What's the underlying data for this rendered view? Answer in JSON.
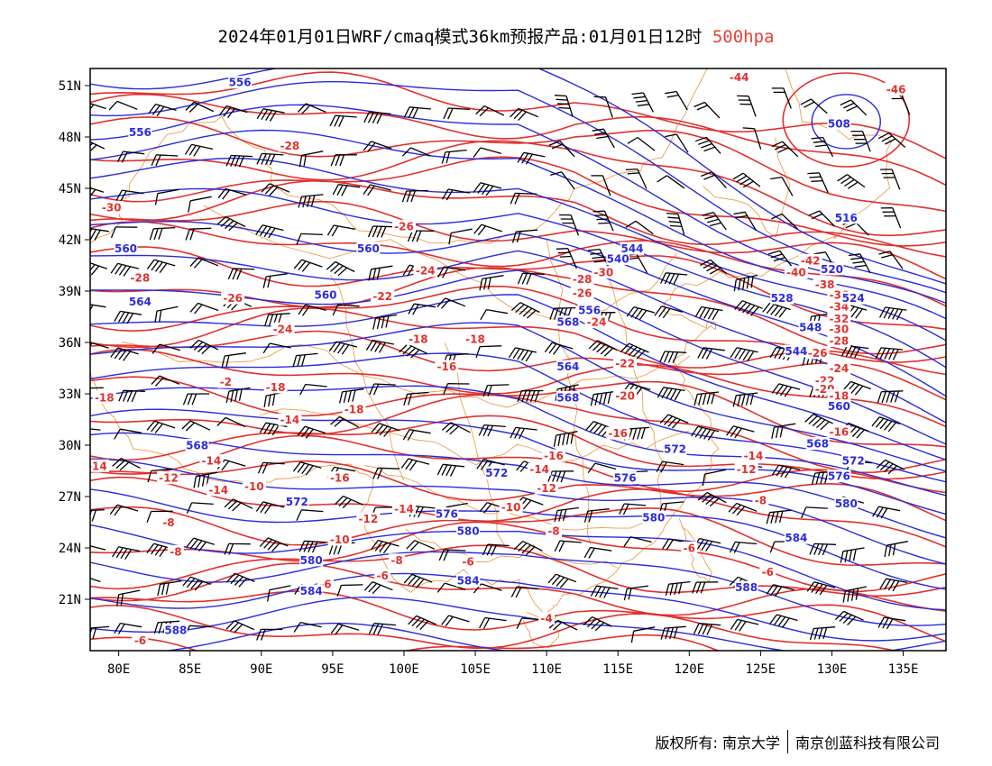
{
  "title": {
    "main": "2024年01月01日WRF/cmaq模式36km预报产品:01月01日12时",
    "level": "500hpa"
  },
  "map": {
    "lon_range": [
      78,
      138
    ],
    "lat_range": [
      18,
      52
    ],
    "x_ticks": [
      "80E",
      "85E",
      "90E",
      "95E",
      "100E",
      "105E",
      "110E",
      "115E",
      "120E",
      "125E",
      "130E",
      "135E"
    ],
    "y_ticks": [
      "51N",
      "48N",
      "45N",
      "42N",
      "39N",
      "36N",
      "33N",
      "30N",
      "27N",
      "24N",
      "21N"
    ],
    "colors": {
      "height": "#2b2bdc",
      "temperature": "#e0312e",
      "boundary": "#e8a050",
      "wind": "#000000"
    },
    "height_labels": [
      {
        "text": "556",
        "lon": 88.5,
        "lat": 51.2
      },
      {
        "text": "556",
        "lon": 81.5,
        "lat": 48.3
      },
      {
        "text": "508",
        "lon": 130.5,
        "lat": 48.8
      },
      {
        "text": "560",
        "lon": 80.5,
        "lat": 41.5
      },
      {
        "text": "560",
        "lon": 97.5,
        "lat": 41.5
      },
      {
        "text": "564",
        "lon": 81.5,
        "lat": 38.4
      },
      {
        "text": "560",
        "lon": 94.5,
        "lat": 38.8
      },
      {
        "text": "568",
        "lon": 111.5,
        "lat": 37.2
      },
      {
        "text": "556",
        "lon": 113,
        "lat": 37.9
      },
      {
        "text": "564",
        "lon": 111.5,
        "lat": 34.6
      },
      {
        "text": "568",
        "lon": 111.5,
        "lat": 32.8
      },
      {
        "text": "568",
        "lon": 85.5,
        "lat": 30
      },
      {
        "text": "572",
        "lon": 119,
        "lat": 29.8
      },
      {
        "text": "572",
        "lon": 106.5,
        "lat": 28.4
      },
      {
        "text": "572",
        "lon": 92.5,
        "lat": 26.7
      },
      {
        "text": "576",
        "lon": 115.5,
        "lat": 28.1
      },
      {
        "text": "576",
        "lon": 103,
        "lat": 26
      },
      {
        "text": "580",
        "lon": 117.5,
        "lat": 25.8
      },
      {
        "text": "580",
        "lon": 104.5,
        "lat": 25
      },
      {
        "text": "580",
        "lon": 93.5,
        "lat": 23.3
      },
      {
        "text": "584",
        "lon": 93.5,
        "lat": 21.5
      },
      {
        "text": "584",
        "lon": 104.5,
        "lat": 22.1
      },
      {
        "text": "584",
        "lon": 127.5,
        "lat": 24.6
      },
      {
        "text": "588",
        "lon": 84,
        "lat": 19.2
      },
      {
        "text": "588",
        "lon": 124,
        "lat": 21.7
      },
      {
        "text": "540",
        "lon": 115,
        "lat": 40.9
      },
      {
        "text": "544",
        "lon": 116,
        "lat": 41.5
      },
      {
        "text": "528",
        "lon": 126.5,
        "lat": 38.6
      },
      {
        "text": "524",
        "lon": 131.5,
        "lat": 38.6
      },
      {
        "text": "520",
        "lon": 130,
        "lat": 40.3
      },
      {
        "text": "516",
        "lon": 131,
        "lat": 43.3
      },
      {
        "text": "548",
        "lon": 128.5,
        "lat": 36.9
      },
      {
        "text": "544",
        "lon": 127.5,
        "lat": 35.5
      },
      {
        "text": "560",
        "lon": 130.5,
        "lat": 32.3
      },
      {
        "text": "568",
        "lon": 129,
        "lat": 30.1
      },
      {
        "text": "572",
        "lon": 131.5,
        "lat": 29.1
      },
      {
        "text": "576",
        "lon": 130.5,
        "lat": 28.2
      },
      {
        "text": "580",
        "lon": 131,
        "lat": 26.6
      }
    ],
    "temperature_labels": [
      {
        "text": "-44",
        "lon": 123.5,
        "lat": 51.5
      },
      {
        "text": "-46",
        "lon": 134.5,
        "lat": 50.8
      },
      {
        "text": "-28",
        "lon": 92,
        "lat": 47.5
      },
      {
        "text": "-30",
        "lon": 79.5,
        "lat": 43.9
      },
      {
        "text": "-26",
        "lon": 100,
        "lat": 42.8
      },
      {
        "text": "-28",
        "lon": 81.5,
        "lat": 39.8
      },
      {
        "text": "-24",
        "lon": 101.5,
        "lat": 40.2
      },
      {
        "text": "-22",
        "lon": 98.5,
        "lat": 38.7
      },
      {
        "text": "-26",
        "lon": 88,
        "lat": 38.6
      },
      {
        "text": "-24",
        "lon": 91.5,
        "lat": 36.8
      },
      {
        "text": "-28",
        "lon": 112.5,
        "lat": 39.7
      },
      {
        "text": "-30",
        "lon": 114,
        "lat": 40.1
      },
      {
        "text": "-26",
        "lon": 112.5,
        "lat": 38.9
      },
      {
        "text": "-24",
        "lon": 113.5,
        "lat": 37.2
      },
      {
        "text": "-42",
        "lon": 128.5,
        "lat": 40.8
      },
      {
        "text": "-40",
        "lon": 127.5,
        "lat": 40.1
      },
      {
        "text": "-38",
        "lon": 129.5,
        "lat": 39.4
      },
      {
        "text": "-36",
        "lon": 130.5,
        "lat": 38.8
      },
      {
        "text": "-34",
        "lon": 130.5,
        "lat": 38.1
      },
      {
        "text": "-32",
        "lon": 130.5,
        "lat": 37.4
      },
      {
        "text": "-30",
        "lon": 130.5,
        "lat": 36.8
      },
      {
        "text": "-28",
        "lon": 130.5,
        "lat": 36.1
      },
      {
        "text": "-26",
        "lon": 129,
        "lat": 35.4
      },
      {
        "text": "-24",
        "lon": 130.5,
        "lat": 34.5
      },
      {
        "text": "-22",
        "lon": 129.5,
        "lat": 33.8
      },
      {
        "text": "-20",
        "lon": 129.5,
        "lat": 33.3
      },
      {
        "text": "-18",
        "lon": 105,
        "lat": 36.2
      },
      {
        "text": "-18",
        "lon": 101,
        "lat": 36.2
      },
      {
        "text": "-16",
        "lon": 103,
        "lat": 34.6
      },
      {
        "text": "-22",
        "lon": 115.5,
        "lat": 34.8
      },
      {
        "text": "-20",
        "lon": 115.5,
        "lat": 32.9
      },
      {
        "text": "-2",
        "lon": 87.5,
        "lat": 33.7
      },
      {
        "text": "-18",
        "lon": 91,
        "lat": 33.4
      },
      {
        "text": "-18",
        "lon": 79,
        "lat": 32.8
      },
      {
        "text": "-18",
        "lon": 96.5,
        "lat": 32.1
      },
      {
        "text": "-14",
        "lon": 92,
        "lat": 31.5
      },
      {
        "text": "-18",
        "lon": 130.5,
        "lat": 32.9
      },
      {
        "text": "-16",
        "lon": 130.5,
        "lat": 30.8
      },
      {
        "text": "-16",
        "lon": 115,
        "lat": 30.7
      },
      {
        "text": "-16",
        "lon": 110.5,
        "lat": 29.4
      },
      {
        "text": "-14",
        "lon": 78.5,
        "lat": 28.8
      },
      {
        "text": "-14",
        "lon": 86.5,
        "lat": 29.1
      },
      {
        "text": "-12",
        "lon": 83.5,
        "lat": 28.1
      },
      {
        "text": "-14",
        "lon": 87,
        "lat": 27.4
      },
      {
        "text": "-10",
        "lon": 89.5,
        "lat": 27.6
      },
      {
        "text": "-16",
        "lon": 95.5,
        "lat": 28.1
      },
      {
        "text": "-14",
        "lon": 109.5,
        "lat": 28.6
      },
      {
        "text": "-14",
        "lon": 124.5,
        "lat": 29.4
      },
      {
        "text": "-12",
        "lon": 124,
        "lat": 28.6
      },
      {
        "text": "-12",
        "lon": 110,
        "lat": 27.5
      },
      {
        "text": "-10",
        "lon": 107.5,
        "lat": 26.4
      },
      {
        "text": "-14",
        "lon": 100,
        "lat": 26.3
      },
      {
        "text": "-12",
        "lon": 97.5,
        "lat": 25.7
      },
      {
        "text": "-10",
        "lon": 95.5,
        "lat": 24.5
      },
      {
        "text": "-8",
        "lon": 83.5,
        "lat": 25.5
      },
      {
        "text": "-8",
        "lon": 110.5,
        "lat": 25
      },
      {
        "text": "-8",
        "lon": 125,
        "lat": 26.8
      },
      {
        "text": "-8",
        "lon": 84,
        "lat": 23.8
      },
      {
        "text": "-8",
        "lon": 99.5,
        "lat": 23.3
      },
      {
        "text": "-6",
        "lon": 104.5,
        "lat": 23.2
      },
      {
        "text": "-6",
        "lon": 98.5,
        "lat": 22.4
      },
      {
        "text": "-6",
        "lon": 94.5,
        "lat": 21.9
      },
      {
        "text": "-6",
        "lon": 120,
        "lat": 24
      },
      {
        "text": "-6",
        "lon": 125.5,
        "lat": 22.6
      },
      {
        "text": "-4",
        "lon": 110,
        "lat": 19.9
      },
      {
        "text": "-6",
        "lon": 81.5,
        "lat": 18.6
      }
    ]
  },
  "footer": {
    "left": "版权所有: 南京大学",
    "right": "南京创蓝科技有限公司"
  }
}
